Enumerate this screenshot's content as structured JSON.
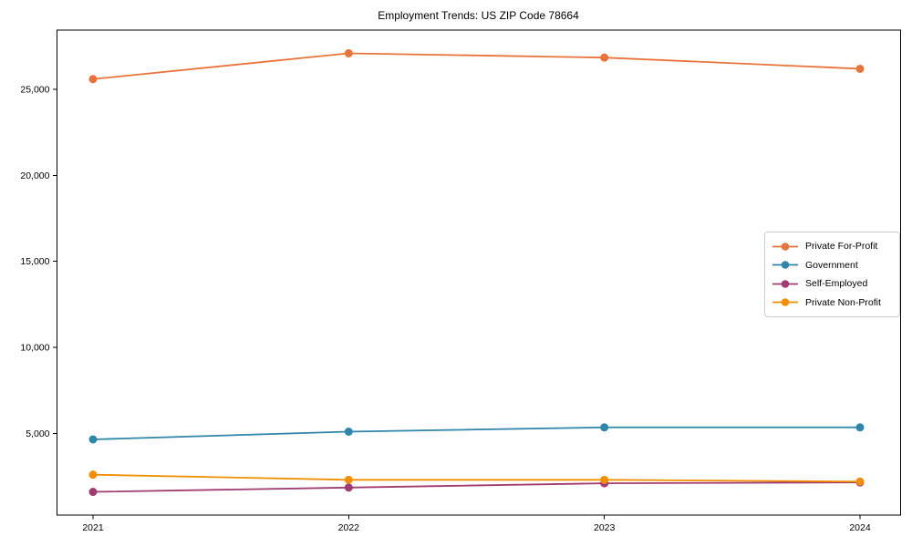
{
  "figure": {
    "background": "#ffffff"
  },
  "chart_data": {
    "type": "line",
    "title": "Employment Trends: US ZIP Code 78664",
    "xlabel": "",
    "ylabel": "",
    "x": [
      2021,
      2022,
      2023,
      2024
    ],
    "x_tick_labels": [
      "2021",
      "2022",
      "2023",
      "2024"
    ],
    "y_ticks": [
      {
        "value": 5000,
        "label": "5,000"
      },
      {
        "value": 10000,
        "label": "10,000"
      },
      {
        "value": 15000,
        "label": "15,000"
      },
      {
        "value": 20000,
        "label": "20,000"
      },
      {
        "value": 25000,
        "label": "25,000"
      }
    ],
    "ylim": [
      250,
      28450
    ],
    "grid": false,
    "legend": {
      "position": "right-center",
      "border_color": "#cccccc"
    },
    "series": [
      {
        "name": "Private For-Profit",
        "color": "#e8743b",
        "values": [
          25600,
          27100,
          26850,
          26200
        ]
      },
      {
        "name": "Government",
        "color": "#2e86ab",
        "values": [
          4650,
          5100,
          5350,
          5350
        ]
      },
      {
        "name": "Self-Employed",
        "color": "#a23b72",
        "values": [
          1600,
          1850,
          2100,
          2150
        ]
      },
      {
        "name": "Private Non-Profit",
        "color": "#f18f01",
        "values": [
          2600,
          2300,
          2300,
          2200
        ]
      }
    ],
    "axis_color": "#000000",
    "text_color": "#000000"
  }
}
